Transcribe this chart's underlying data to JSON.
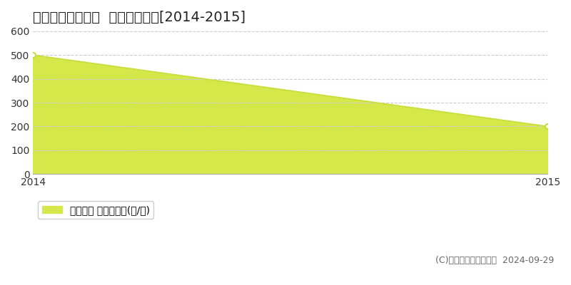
{
  "title": "出雲市大社町鵜峠  林地価格推移[2014-2015]",
  "x": [
    2014,
    2015
  ],
  "y": [
    500,
    200
  ],
  "fill_color": "#d4e84a",
  "line_color": "#c8dc3c",
  "marker_color": "#c8dc3c",
  "background_color": "#ffffff",
  "grid_color": "#cccccc",
  "xlim": [
    2014,
    2015
  ],
  "ylim": [
    0,
    600
  ],
  "yticks": [
    0,
    100,
    200,
    300,
    400,
    500,
    600
  ],
  "xticks": [
    2014,
    2015
  ],
  "legend_label": "林地価格 平均坪単価(円/坪)",
  "copyright_text": "(C)土地価格ドットコム  2024-09-29",
  "title_fontsize": 14,
  "axis_fontsize": 10,
  "legend_fontsize": 10,
  "copyright_fontsize": 9
}
